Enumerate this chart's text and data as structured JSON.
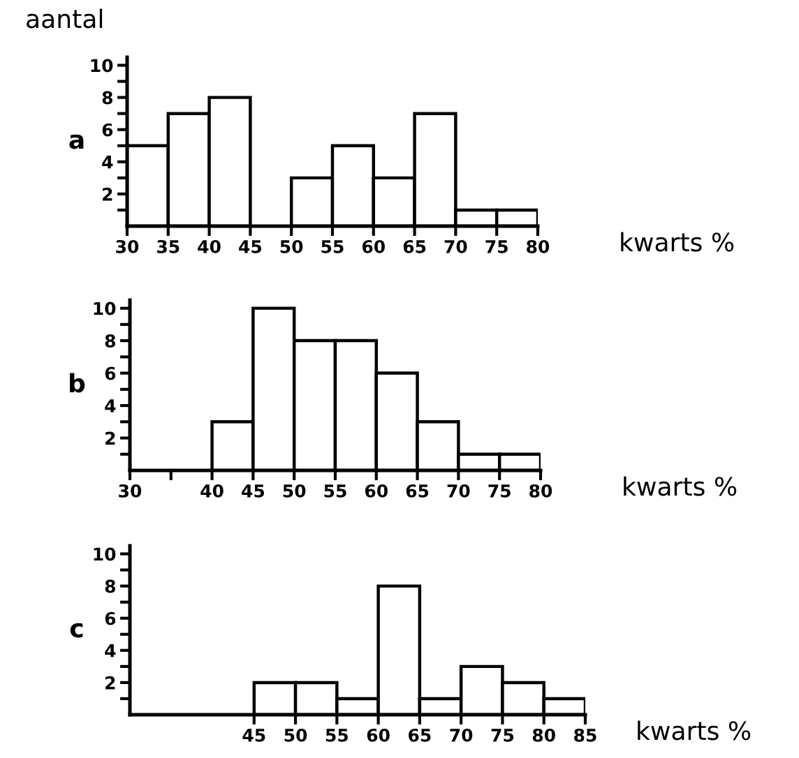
{
  "chart_data": [
    {
      "type": "histogram",
      "title": "a",
      "ylabel": "aantal",
      "xlabel": "kwarts %",
      "bins": [
        30,
        35,
        40,
        45,
        50,
        55,
        60,
        65,
        70,
        75,
        80
      ],
      "values": [
        5,
        7,
        8,
        0,
        3,
        5,
        3,
        7,
        1,
        1
      ],
      "color": "#ffffff",
      "xlim": [
        30,
        80
      ],
      "xticks": [
        30,
        35,
        40,
        45,
        50,
        55,
        60,
        65,
        70,
        75,
        80
      ],
      "ylim": [
        0,
        10.5
      ],
      "yticks": [
        {
          "value": 1,
          "label": null
        },
        2,
        {
          "value": 3,
          "label": null
        },
        4,
        {
          "value": 5,
          "label": null
        },
        6,
        {
          "value": 7,
          "label": null
        },
        8,
        {
          "value": 9,
          "label": null
        },
        10
      ],
      "grid": false,
      "legend": false
    },
    {
      "type": "histogram",
      "title": "b",
      "xlabel": "kwarts %",
      "bins": [
        30,
        35,
        40,
        45,
        50,
        55,
        60,
        65,
        70,
        75,
        80
      ],
      "values": [
        0,
        0,
        3,
        10,
        8,
        8,
        6,
        3,
        1,
        1
      ],
      "color": "#ffffff",
      "xlim": [
        30,
        80
      ],
      "xticks": [
        30,
        {
          "value": 35,
          "label": null
        },
        40,
        45,
        50,
        55,
        60,
        65,
        70,
        75,
        80
      ],
      "ylim": [
        0,
        10.5
      ],
      "yticks": [
        {
          "value": 1,
          "label": null
        },
        2,
        {
          "value": 3,
          "label": null
        },
        4,
        {
          "value": 5,
          "label": null
        },
        6,
        {
          "value": 7,
          "label": null
        },
        8,
        {
          "value": 9,
          "label": null
        },
        10
      ],
      "grid": false,
      "legend": false
    },
    {
      "type": "histogram",
      "title": "c",
      "xlabel": "kwarts %",
      "bins": [
        45,
        50,
        55,
        60,
        65,
        70,
        75,
        80,
        85
      ],
      "values": [
        2,
        2,
        1,
        8,
        1,
        3,
        2,
        1
      ],
      "color": "#ffffff",
      "xlim": [
        30,
        85
      ],
      "xticks": [
        45,
        50,
        55,
        60,
        65,
        70,
        75,
        80,
        85
      ],
      "ylim": [
        0,
        10.5
      ],
      "yticks": [
        {
          "value": 1,
          "label": null
        },
        2,
        {
          "value": 3,
          "label": null
        },
        4,
        {
          "value": 5,
          "label": null
        },
        6,
        {
          "value": 7,
          "label": null
        },
        8,
        {
          "value": 9,
          "label": null
        },
        10
      ],
      "grid": false,
      "legend": false
    }
  ]
}
